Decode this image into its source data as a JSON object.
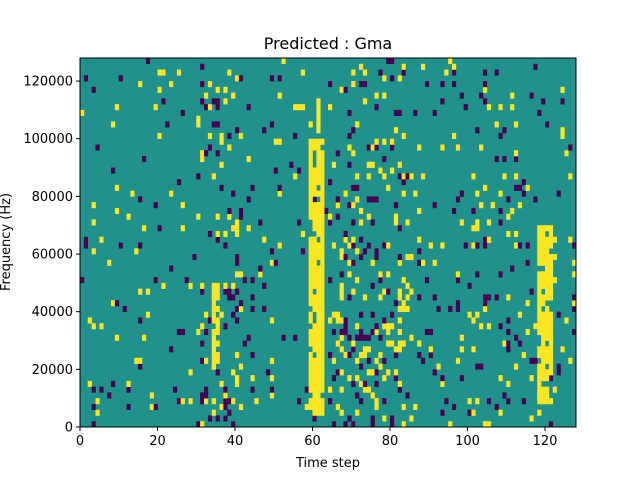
{
  "chart_data": {
    "type": "heatmap",
    "title": "Predicted : Gma",
    "xlabel": "Time step",
    "ylabel": "Frequency (Hz)",
    "xlim": [
      0,
      128
    ],
    "ylim": [
      0,
      128000
    ],
    "xticks": [
      0,
      20,
      40,
      60,
      80,
      100,
      120
    ],
    "xtick_labels": [
      "0",
      "20",
      "40",
      "60",
      "80",
      "100",
      "120"
    ],
    "yticks": [
      0,
      20000,
      40000,
      60000,
      80000,
      100000,
      120000
    ],
    "ytick_labels": [
      "0",
      "20000",
      "40000",
      "60000",
      "80000",
      "100000",
      "120000"
    ],
    "grid": false,
    "legend": "none",
    "colormap": "viridis",
    "colors": {
      "background": "#21918c",
      "high": "#fde725",
      "low": "#440154"
    },
    "levels": {
      "background": 0,
      "high": 1,
      "low": -1
    },
    "cell_size": {
      "time_steps": 1,
      "frequency_hz": 2000
    },
    "highlighted_bands": [
      {
        "time_range": [
          59,
          63
        ],
        "frequency_range": [
          4000,
          100000
        ],
        "level": 1
      },
      {
        "time_range": [
          61,
          62
        ],
        "frequency_range": [
          100000,
          114000
        ],
        "level": 1
      },
      {
        "time_range": [
          118,
          122
        ],
        "frequency_range": [
          8000,
          70000
        ],
        "level": 1
      },
      {
        "time_range": [
          34,
          36
        ],
        "frequency_range": [
          20000,
          50000
        ],
        "level": 1
      }
    ]
  }
}
